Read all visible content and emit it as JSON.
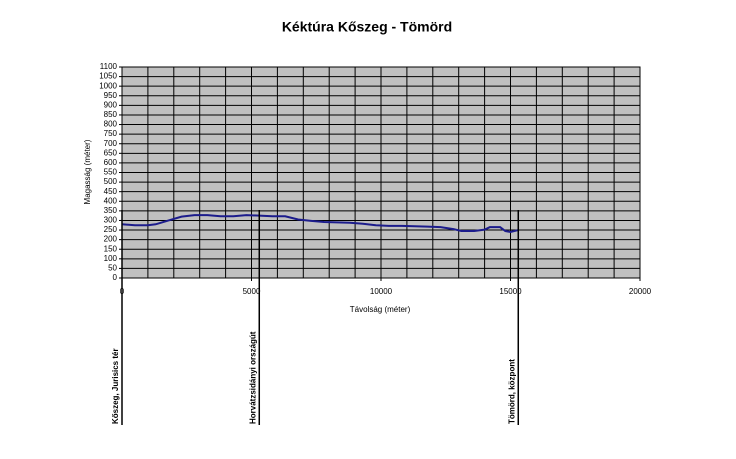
{
  "chart_data": {
    "type": "line",
    "title": "Kéktúra Kőszeg - Tömörd",
    "x_label": "Távolság (méter)",
    "y_label": "Magasság (méter)",
    "series": [
      {
        "name": "Magasság",
        "color": "#1c1c8c",
        "x": [
          0,
          500,
          1000,
          1300,
          1800,
          2300,
          2800,
          3300,
          3800,
          4300,
          4800,
          5300,
          5800,
          6300,
          6800,
          7300,
          7800,
          8300,
          8800,
          9300,
          9800,
          10300,
          10800,
          11300,
          11800,
          12300,
          12800,
          13100,
          13600,
          14000,
          14200,
          14600,
          14800,
          15000,
          15300
        ],
        "values": [
          280,
          275,
          275,
          280,
          300,
          320,
          328,
          328,
          322,
          322,
          328,
          325,
          322,
          322,
          305,
          298,
          292,
          290,
          288,
          283,
          275,
          272,
          272,
          270,
          268,
          265,
          255,
          245,
          245,
          252,
          265,
          265,
          245,
          240,
          250
        ]
      }
    ],
    "xlim": [
      0,
      20000
    ],
    "xticks": [
      0,
      5000,
      10000,
      15000,
      20000
    ],
    "xgrid": [
      0,
      1000,
      2000,
      3000,
      4000,
      5000,
      6000,
      7000,
      8000,
      9000,
      10000,
      11000,
      12000,
      13000,
      14000,
      15000,
      16000,
      17000,
      18000,
      19000,
      20000
    ],
    "ylim": [
      0,
      1100
    ],
    "yticks": [
      0,
      50,
      100,
      150,
      200,
      250,
      300,
      350,
      400,
      450,
      500,
      550,
      600,
      650,
      700,
      750,
      800,
      850,
      900,
      950,
      1000,
      1050,
      1100
    ],
    "grid": true,
    "plot_background": "#c0c0c0",
    "waypoints": [
      {
        "label": "Kőszeg, Jurisics tér",
        "x": 0
      },
      {
        "label": "Horvátzsidányi országút",
        "x": 5300
      },
      {
        "label": "Tömörd, központ",
        "x": 15300
      }
    ]
  }
}
